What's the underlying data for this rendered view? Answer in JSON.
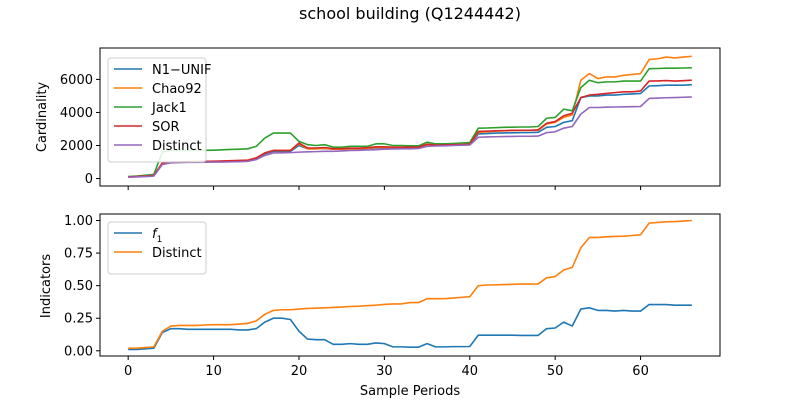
{
  "figure": {
    "title": "school building (Q1244442)"
  },
  "chart_data": [
    {
      "type": "line",
      "ylabel": "Cardinality",
      "xlabel": "",
      "xlim": [
        -3.3,
        69.3
      ],
      "ylim": [
        -450,
        7900
      ],
      "xticks": [
        0,
        10,
        20,
        30,
        40,
        50,
        60
      ],
      "xtick_labels": [
        "",
        "",
        "",
        "",
        "",
        "",
        ""
      ],
      "yticks": [
        0,
        2000,
        4000,
        6000
      ],
      "ytick_labels": [
        "0",
        "2000",
        "4000",
        "6000"
      ],
      "legend_position": "upper-left",
      "x": [
        0,
        1,
        2,
        3,
        4,
        5,
        6,
        7,
        8,
        9,
        10,
        11,
        12,
        13,
        14,
        15,
        16,
        17,
        18,
        19,
        20,
        21,
        22,
        23,
        24,
        25,
        26,
        27,
        28,
        29,
        30,
        31,
        32,
        33,
        34,
        35,
        36,
        37,
        38,
        39,
        40,
        41,
        42,
        43,
        44,
        45,
        46,
        47,
        48,
        49,
        50,
        51,
        52,
        53,
        54,
        55,
        56,
        57,
        58,
        59,
        60,
        61,
        62,
        63,
        64,
        65,
        66
      ],
      "series": [
        {
          "name": "N1−UNIF",
          "color": "#1f77b4",
          "values": [
            100,
            120,
            150,
            180,
            900,
            1000,
            1000,
            1020,
            1020,
            1030,
            1040,
            1050,
            1060,
            1080,
            1080,
            1200,
            1500,
            1650,
            1650,
            1650,
            2000,
            1800,
            1800,
            1820,
            1780,
            1780,
            1800,
            1800,
            1820,
            1850,
            1850,
            1870,
            1880,
            1880,
            1880,
            2050,
            2000,
            2000,
            2020,
            2030,
            2050,
            2700,
            2720,
            2750,
            2760,
            2770,
            2780,
            2780,
            2800,
            3100,
            3150,
            3400,
            3500,
            4900,
            5000,
            5000,
            5050,
            5050,
            5100,
            5120,
            5150,
            5600,
            5620,
            5650,
            5650,
            5650,
            5680
          ]
        },
        {
          "name": "Chao92",
          "color": "#ff7f0e",
          "values": [
            100,
            120,
            150,
            200,
            900,
            1000,
            1000,
            1020,
            1020,
            1030,
            1040,
            1050,
            1060,
            1080,
            1100,
            1250,
            1550,
            1700,
            1700,
            1700,
            2100,
            1800,
            1800,
            1830,
            1780,
            1780,
            1800,
            1800,
            1830,
            1880,
            1880,
            1880,
            1880,
            1880,
            1880,
            2060,
            2000,
            2010,
            2020,
            2040,
            2060,
            2800,
            2830,
            2870,
            2890,
            2900,
            2920,
            2920,
            2920,
            3300,
            3400,
            3700,
            3850,
            5950,
            6350,
            6050,
            6150,
            6150,
            6250,
            6300,
            6350,
            7200,
            7250,
            7350,
            7300,
            7350,
            7400
          ]
        },
        {
          "name": "Jack1",
          "color": "#2ca02c",
          "values": [
            120,
            150,
            200,
            250,
            1600,
            1700,
            1700,
            1700,
            1700,
            1710,
            1720,
            1740,
            1760,
            1780,
            1800,
            1950,
            2450,
            2750,
            2750,
            2750,
            2250,
            2050,
            2000,
            2050,
            1900,
            1900,
            1950,
            1950,
            1950,
            2100,
            2100,
            2000,
            2000,
            1980,
            1980,
            2200,
            2100,
            2100,
            2120,
            2150,
            2180,
            3050,
            3060,
            3080,
            3100,
            3110,
            3120,
            3120,
            3150,
            3650,
            3700,
            4200,
            4100,
            5500,
            5950,
            5800,
            5850,
            5850,
            5900,
            5900,
            5900,
            6650,
            6660,
            6680,
            6680,
            6690,
            6700
          ]
        },
        {
          "name": "SOR",
          "color": "#d62728",
          "values": [
            100,
            120,
            150,
            190,
            950,
            1000,
            1000,
            1020,
            1020,
            1040,
            1050,
            1060,
            1080,
            1100,
            1110,
            1250,
            1550,
            1700,
            1700,
            1700,
            2150,
            1850,
            1850,
            1880,
            1810,
            1810,
            1840,
            1840,
            1870,
            1920,
            1920,
            1900,
            1900,
            1900,
            1900,
            2080,
            2020,
            2030,
            2050,
            2060,
            2080,
            2850,
            2870,
            2890,
            2900,
            2920,
            2920,
            2920,
            2950,
            3350,
            3450,
            3800,
            3950,
            4900,
            5050,
            5100,
            5150,
            5200,
            5250,
            5250,
            5300,
            5900,
            5910,
            5930,
            5900,
            5920,
            5950
          ]
        },
        {
          "name": "Distinct",
          "color": "#9467bd",
          "values": [
            80,
            100,
            120,
            150,
            850,
            950,
            970,
            980,
            980,
            990,
            1000,
            1000,
            1010,
            1020,
            1040,
            1150,
            1400,
            1550,
            1560,
            1570,
            1600,
            1620,
            1630,
            1650,
            1650,
            1670,
            1700,
            1710,
            1730,
            1750,
            1780,
            1790,
            1800,
            1800,
            1820,
            1950,
            1970,
            1980,
            2000,
            2020,
            2030,
            2500,
            2520,
            2530,
            2540,
            2550,
            2560,
            2560,
            2570,
            2780,
            2830,
            3050,
            3150,
            3900,
            4300,
            4300,
            4320,
            4330,
            4340,
            4350,
            4360,
            4850,
            4870,
            4890,
            4900,
            4920,
            4940
          ]
        }
      ]
    },
    {
      "type": "line",
      "ylabel": "Indicators",
      "xlabel": "Sample Periods",
      "xlim": [
        -3.3,
        69.3
      ],
      "ylim": [
        -0.04,
        1.05
      ],
      "xticks": [
        0,
        10,
        20,
        30,
        40,
        50,
        60
      ],
      "xtick_labels": [
        "0",
        "10",
        "20",
        "30",
        "40",
        "50",
        "60"
      ],
      "yticks": [
        0.0,
        0.25,
        0.5,
        0.75,
        1.0
      ],
      "ytick_labels": [
        "0.00",
        "0.25",
        "0.50",
        "0.75",
        "1.00"
      ],
      "legend_position": "upper-left",
      "x": [
        0,
        1,
        2,
        3,
        4,
        5,
        6,
        7,
        8,
        9,
        10,
        11,
        12,
        13,
        14,
        15,
        16,
        17,
        18,
        19,
        20,
        21,
        22,
        23,
        24,
        25,
        26,
        27,
        28,
        29,
        30,
        31,
        32,
        33,
        34,
        35,
        36,
        37,
        38,
        39,
        40,
        41,
        42,
        43,
        44,
        45,
        46,
        47,
        48,
        49,
        50,
        51,
        52,
        53,
        54,
        55,
        56,
        57,
        58,
        59,
        60,
        61,
        62,
        63,
        64,
        65,
        66
      ],
      "series": [
        {
          "name": "f1",
          "name_main": "f",
          "name_sub": "1",
          "color": "#1f77b4",
          "values": [
            0.01,
            0.01,
            0.015,
            0.02,
            0.14,
            0.17,
            0.17,
            0.165,
            0.165,
            0.165,
            0.165,
            0.165,
            0.165,
            0.16,
            0.16,
            0.17,
            0.22,
            0.25,
            0.25,
            0.24,
            0.15,
            0.09,
            0.085,
            0.085,
            0.05,
            0.05,
            0.055,
            0.05,
            0.05,
            0.06,
            0.055,
            0.03,
            0.03,
            0.028,
            0.028,
            0.055,
            0.03,
            0.03,
            0.032,
            0.032,
            0.033,
            0.12,
            0.12,
            0.12,
            0.12,
            0.12,
            0.118,
            0.118,
            0.118,
            0.17,
            0.175,
            0.22,
            0.19,
            0.32,
            0.33,
            0.31,
            0.31,
            0.305,
            0.31,
            0.305,
            0.305,
            0.355,
            0.355,
            0.355,
            0.35,
            0.35,
            0.35
          ]
        },
        {
          "name": "Distinct",
          "color": "#ff7f0e",
          "values": [
            0.02,
            0.02,
            0.025,
            0.03,
            0.15,
            0.19,
            0.195,
            0.195,
            0.195,
            0.198,
            0.2,
            0.2,
            0.2,
            0.205,
            0.21,
            0.23,
            0.28,
            0.31,
            0.315,
            0.315,
            0.32,
            0.325,
            0.327,
            0.33,
            0.333,
            0.336,
            0.34,
            0.342,
            0.346,
            0.35,
            0.356,
            0.36,
            0.36,
            0.37,
            0.37,
            0.4,
            0.4,
            0.4,
            0.405,
            0.41,
            0.415,
            0.5,
            0.505,
            0.506,
            0.508,
            0.51,
            0.512,
            0.512,
            0.513,
            0.56,
            0.57,
            0.62,
            0.64,
            0.79,
            0.87,
            0.87,
            0.875,
            0.878,
            0.88,
            0.885,
            0.89,
            0.98,
            0.985,
            0.99,
            0.992,
            0.996,
            1.0
          ]
        }
      ]
    }
  ]
}
